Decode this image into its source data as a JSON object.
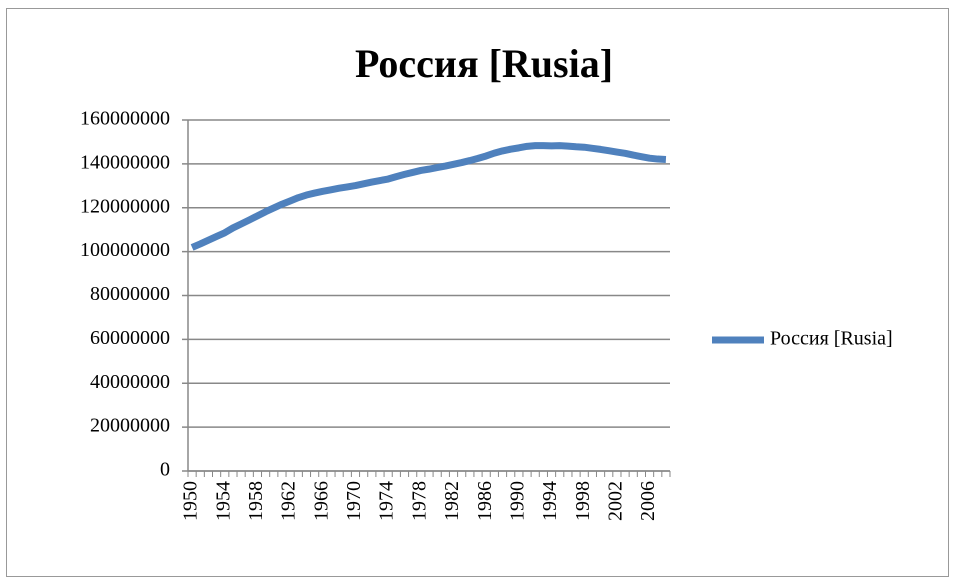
{
  "chart_data": {
    "type": "line",
    "title": "Россия [Rusia]",
    "categories": [
      "1950",
      null,
      null,
      null,
      "1954",
      null,
      null,
      null,
      "1958",
      null,
      null,
      null,
      "1962",
      null,
      null,
      null,
      "1966",
      null,
      null,
      null,
      "1970",
      null,
      null,
      null,
      "1974",
      null,
      null,
      null,
      "1978",
      null,
      null,
      null,
      "1982",
      null,
      null,
      null,
      "1986",
      null,
      null,
      null,
      "1990",
      null,
      null,
      null,
      "1994",
      null,
      null,
      null,
      "1998",
      null,
      null,
      null,
      "2002",
      null,
      null,
      null,
      "2006",
      null,
      null
    ],
    "series": [
      {
        "name": "Россия [Rusia]",
        "color": "#4f81bd",
        "values": [
          101900000,
          103500000,
          105200000,
          106900000,
          108600000,
          110800000,
          112600000,
          114400000,
          116300000,
          118200000,
          119900000,
          121600000,
          123100000,
          124600000,
          125800000,
          126700000,
          127500000,
          128200000,
          128900000,
          129500000,
          130100000,
          130900000,
          131700000,
          132400000,
          133100000,
          134200000,
          135200000,
          136100000,
          137000000,
          137600000,
          138300000,
          139000000,
          139800000,
          140600000,
          141500000,
          142500000,
          143600000,
          144900000,
          145900000,
          146700000,
          147300000,
          148000000,
          148300000,
          148300000,
          148200000,
          148300000,
          148100000,
          147800000,
          147600000,
          147100000,
          146600000,
          146000000,
          145400000,
          144800000,
          144000000,
          143300000,
          142600000,
          142200000,
          142000000
        ]
      }
    ],
    "ylim": [
      0,
      160000000
    ],
    "yticks": [
      0,
      20000000,
      40000000,
      60000000,
      80000000,
      100000000,
      120000000,
      140000000,
      160000000
    ],
    "grid": true,
    "legend": "right"
  }
}
